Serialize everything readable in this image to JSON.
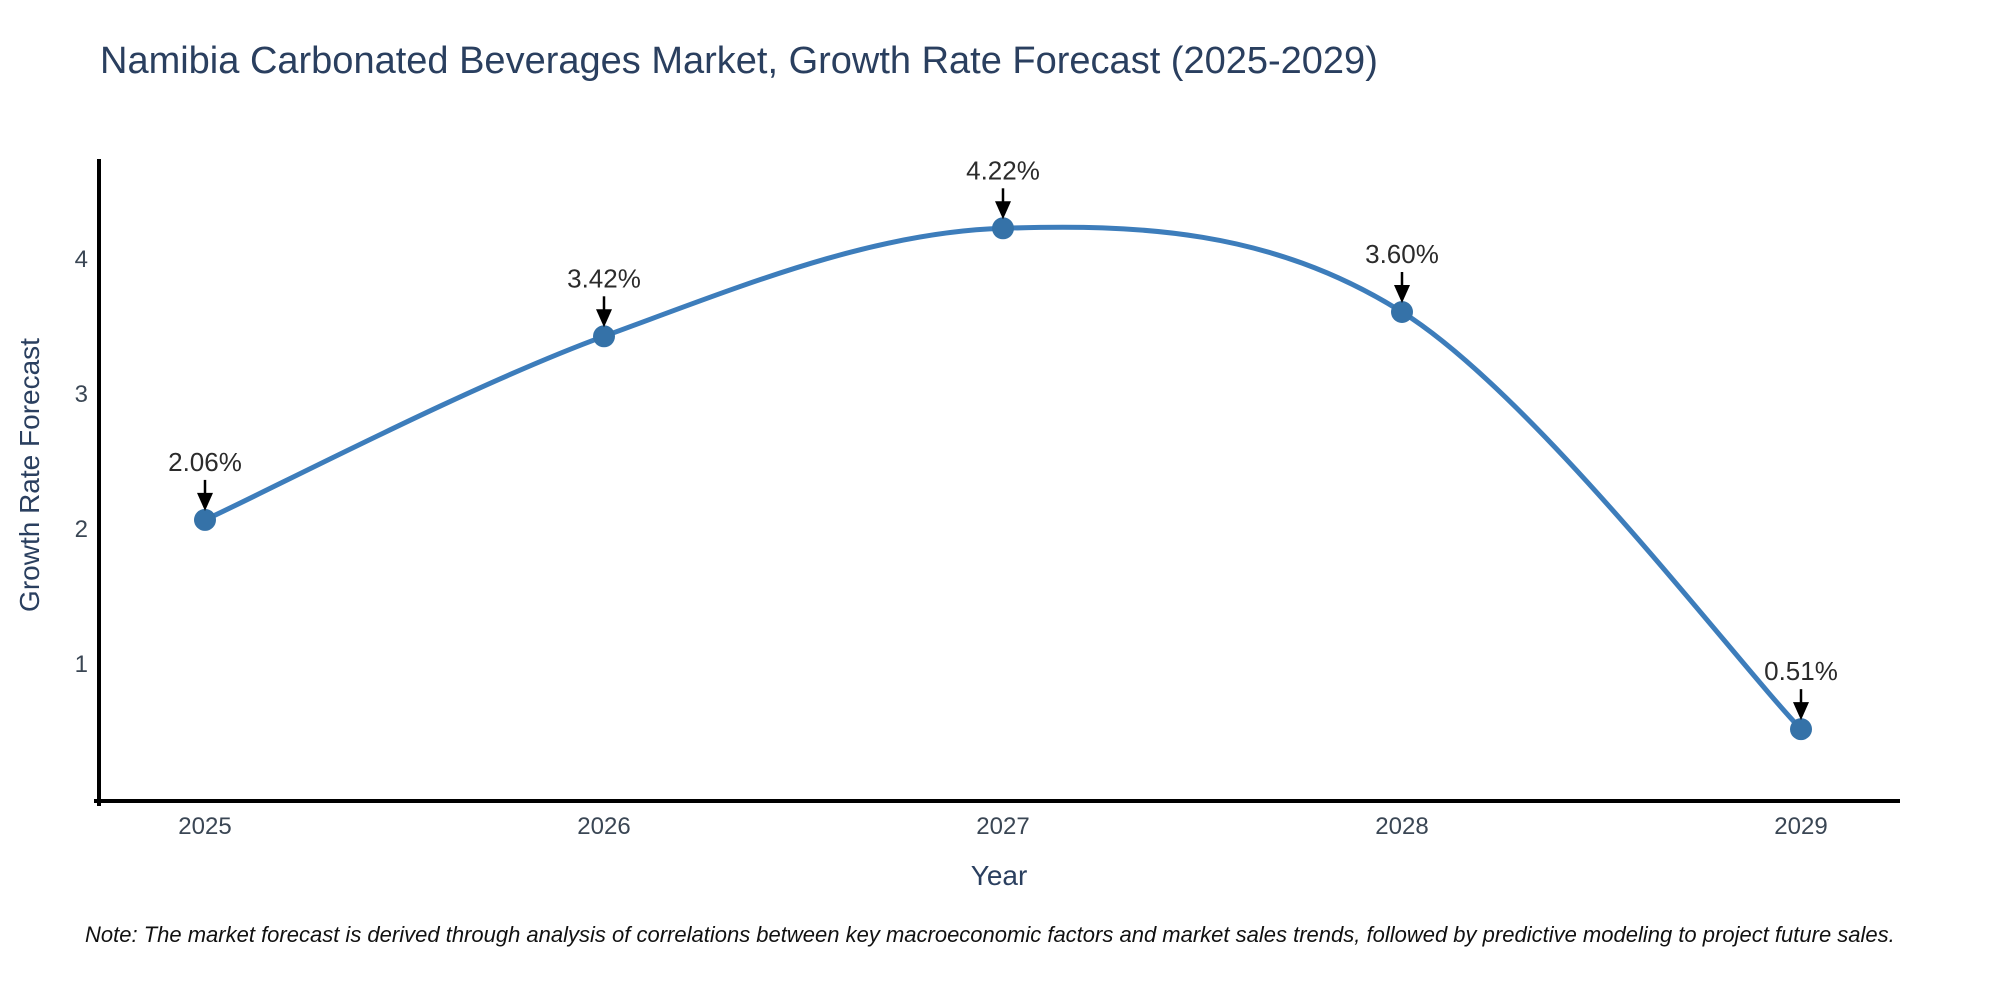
{
  "note": {
    "text": "Note: The market forecast is derived through analysis of correlations between key macroeconomic factors and market sales trends, followed by predictive modeling to project future sales."
  },
  "chart_data": {
    "type": "line",
    "title": "Namibia Carbonated Beverages Market, Growth Rate Forecast (2025-2029)",
    "xlabel": "Year",
    "ylabel": "Growth Rate Forecast",
    "x": [
      "2025",
      "2026",
      "2027",
      "2028",
      "2029"
    ],
    "values": [
      2.06,
      3.42,
      4.22,
      3.6,
      0.51
    ],
    "point_labels": [
      "2.06%",
      "3.42%",
      "4.22%",
      "3.60%",
      "0.51%"
    ],
    "y_ticks": [
      1,
      2,
      3,
      4
    ],
    "ylim": [
      0,
      4.75
    ],
    "grid": false,
    "legend": false,
    "smooth": true,
    "colors": {
      "line": "#3d7dbb",
      "marker": "#3572a8",
      "axis": "#000000",
      "arrow": "#000000",
      "annotation_text": "#2b2b2b",
      "tick_text": "#3a4654",
      "title_text": "#2a3f5f"
    }
  }
}
